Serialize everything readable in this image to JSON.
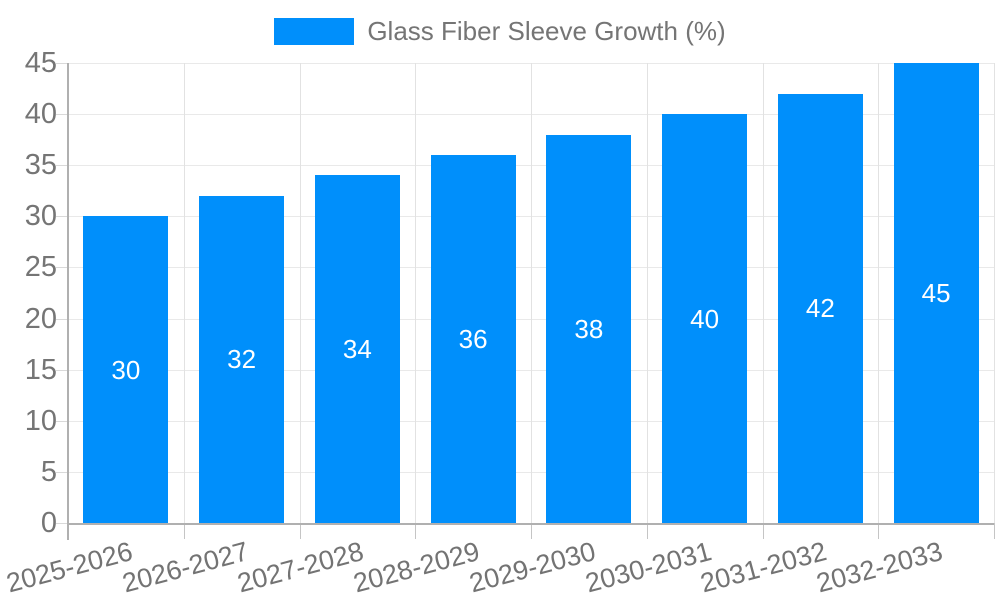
{
  "legend": {
    "series_label": "Glass Fiber Sleeve Growth (%)"
  },
  "chart_data": {
    "type": "bar",
    "title": "",
    "xlabel": "",
    "ylabel": "",
    "categories": [
      "2025-2026",
      "2026-2027",
      "2027-2028",
      "2028-2029",
      "2029-2030",
      "2030-2031",
      "2031-2032",
      "2032-2033"
    ],
    "values": [
      30,
      32,
      34,
      36,
      38,
      40,
      42,
      45
    ],
    "value_labels": [
      "30",
      "32",
      "34",
      "36",
      "38",
      "40",
      "42",
      "45"
    ],
    "ylim": [
      0,
      45
    ],
    "ytick_step": 5,
    "yticks": [
      0,
      5,
      10,
      15,
      20,
      25,
      30,
      35,
      40,
      45
    ],
    "legend_entries": [
      "Glass Fiber Sleeve Growth (%)"
    ],
    "legend_position": "top",
    "grid": true,
    "value_label_position": "inside-center",
    "x_label_rotation_deg": -15,
    "colors": {
      "bar": "#008FFB",
      "bar_value_text": "#ffffff",
      "axis_text": "#757575",
      "grid_line": "#e9e9e9",
      "axis_line": "#b0b0b0"
    }
  }
}
